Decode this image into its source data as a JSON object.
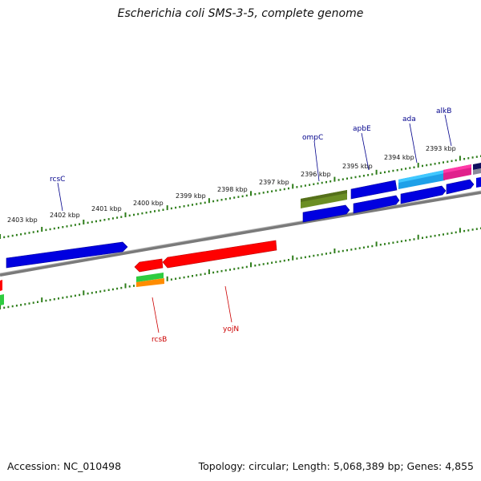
{
  "title": "Escherichia coli SMS-3-5, complete genome",
  "footer": {
    "accession": "Accession: NC_010498",
    "summary": "Topology: circular; Length: 5,068,389 bp; Genes: 4,855"
  },
  "colors": {
    "backbone": "#808080",
    "tick": "#2e7d1a",
    "top_label": "#00008b",
    "bottom_label": "#cc0000"
  },
  "ticks": [
    {
      "label": "2403 kbp"
    },
    {
      "label": "2402 kbp"
    },
    {
      "label": "2401 kbp"
    },
    {
      "label": "2400 kbp"
    },
    {
      "label": "2399 kbp"
    },
    {
      "label": "2398 kbp"
    },
    {
      "label": "2397 kbp"
    },
    {
      "label": "2396 kbp"
    },
    {
      "label": "2395 kbp"
    },
    {
      "label": "2394 kbp"
    },
    {
      "label": "2393 kbp"
    }
  ],
  "gene_labels_top": [
    "rcsC",
    "ompC",
    "apbE",
    "ada",
    "alkB"
  ],
  "gene_labels_bottom": [
    "rcsB",
    "yojN"
  ]
}
